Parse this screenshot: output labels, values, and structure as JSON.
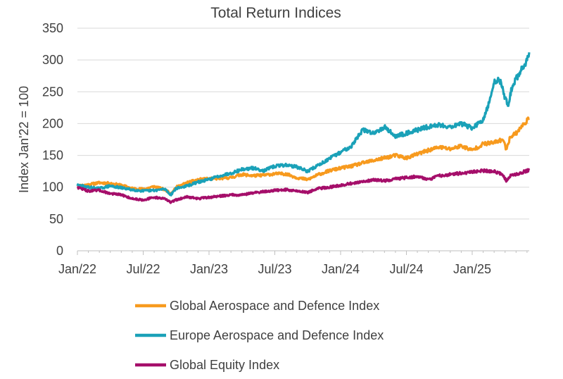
{
  "chart_data": {
    "type": "line",
    "title": "Total Return Indices",
    "xlabel": "",
    "ylabel": "Index Jan'22 = 100",
    "ylim": [
      0,
      350
    ],
    "yticks": [
      0,
      50,
      100,
      150,
      200,
      250,
      300,
      350
    ],
    "xlim": [
      0,
      41.2
    ],
    "x_tick_labels": [
      {
        "x": 0,
        "label": "Jan/22"
      },
      {
        "x": 6,
        "label": "Jul/22"
      },
      {
        "x": 12,
        "label": "Jan/23"
      },
      {
        "x": 18,
        "label": "Jul/23"
      },
      {
        "x": 24,
        "label": "Jan/24"
      },
      {
        "x": 30,
        "label": "Jul/24"
      },
      {
        "x": 36,
        "label": "Jan/25"
      }
    ],
    "grid": true,
    "legend_position": "bottom",
    "series": [
      {
        "name": "Global Aerospace and Defence Index",
        "color": "#F79A1E",
        "x": [
          0,
          1,
          2,
          3,
          4,
          5,
          6,
          7,
          8,
          8.5,
          9,
          10,
          11,
          12,
          13,
          14,
          15,
          16,
          17,
          18,
          19,
          20,
          21,
          22,
          23,
          24,
          25,
          26,
          27,
          28,
          29,
          30,
          31,
          32,
          33,
          34,
          35,
          36,
          37,
          38,
          38.8,
          39.1,
          39.5,
          40,
          40.5,
          41,
          41.2
        ],
        "values": [
          102,
          104,
          107,
          106,
          103,
          98,
          97,
          101,
          96,
          90,
          100,
          107,
          112,
          113,
          114,
          115,
          120,
          118,
          119,
          121,
          121,
          115,
          112,
          120,
          126,
          130,
          133,
          138,
          142,
          146,
          150,
          146,
          152,
          158,
          163,
          160,
          165,
          158,
          168,
          170,
          175,
          160,
          180,
          185,
          195,
          205,
          208
        ]
      },
      {
        "name": "Europe Aerospace and Defence Index",
        "color": "#1AA1B8",
        "x": [
          0,
          1,
          2,
          3,
          4,
          5,
          6,
          7,
          8,
          8.5,
          9,
          10,
          11,
          12,
          13,
          14,
          15,
          16,
          17,
          18,
          19,
          20,
          21,
          22,
          23,
          24,
          25,
          26,
          27,
          28,
          29,
          30,
          31,
          32,
          33,
          34,
          35,
          36,
          37,
          37.5,
          38,
          38.5,
          39,
          39.3,
          39.6,
          40,
          40.5,
          41,
          41.2
        ],
        "values": [
          103,
          100,
          98,
          102,
          99,
          96,
          94,
          95,
          97,
          88,
          98,
          102,
          108,
          112,
          118,
          122,
          128,
          130,
          126,
          133,
          135,
          132,
          125,
          135,
          145,
          155,
          165,
          190,
          185,
          195,
          180,
          185,
          190,
          195,
          198,
          195,
          200,
          193,
          205,
          230,
          265,
          270,
          240,
          230,
          255,
          270,
          285,
          300,
          312
        ]
      },
      {
        "name": "Global Equity Index",
        "color": "#A50E6A",
        "x": [
          0,
          1,
          2,
          3,
          4,
          5,
          6,
          7,
          8,
          8.5,
          9,
          10,
          11,
          12,
          13,
          14,
          15,
          16,
          17,
          18,
          19,
          20,
          21,
          22,
          23,
          24,
          25,
          26,
          27,
          28,
          29,
          30,
          31,
          32,
          33,
          34,
          35,
          36,
          37,
          38,
          38.8,
          39.1,
          39.5,
          40,
          40.5,
          41,
          41.2
        ],
        "values": [
          100,
          94,
          95,
          90,
          88,
          82,
          80,
          84,
          82,
          76,
          80,
          85,
          82,
          84,
          86,
          88,
          88,
          91,
          93,
          95,
          96,
          94,
          92,
          98,
          100,
          103,
          106,
          108,
          112,
          110,
          113,
          115,
          117,
          112,
          118,
          120,
          122,
          124,
          126,
          125,
          120,
          110,
          118,
          120,
          123,
          126,
          127
        ]
      }
    ]
  }
}
